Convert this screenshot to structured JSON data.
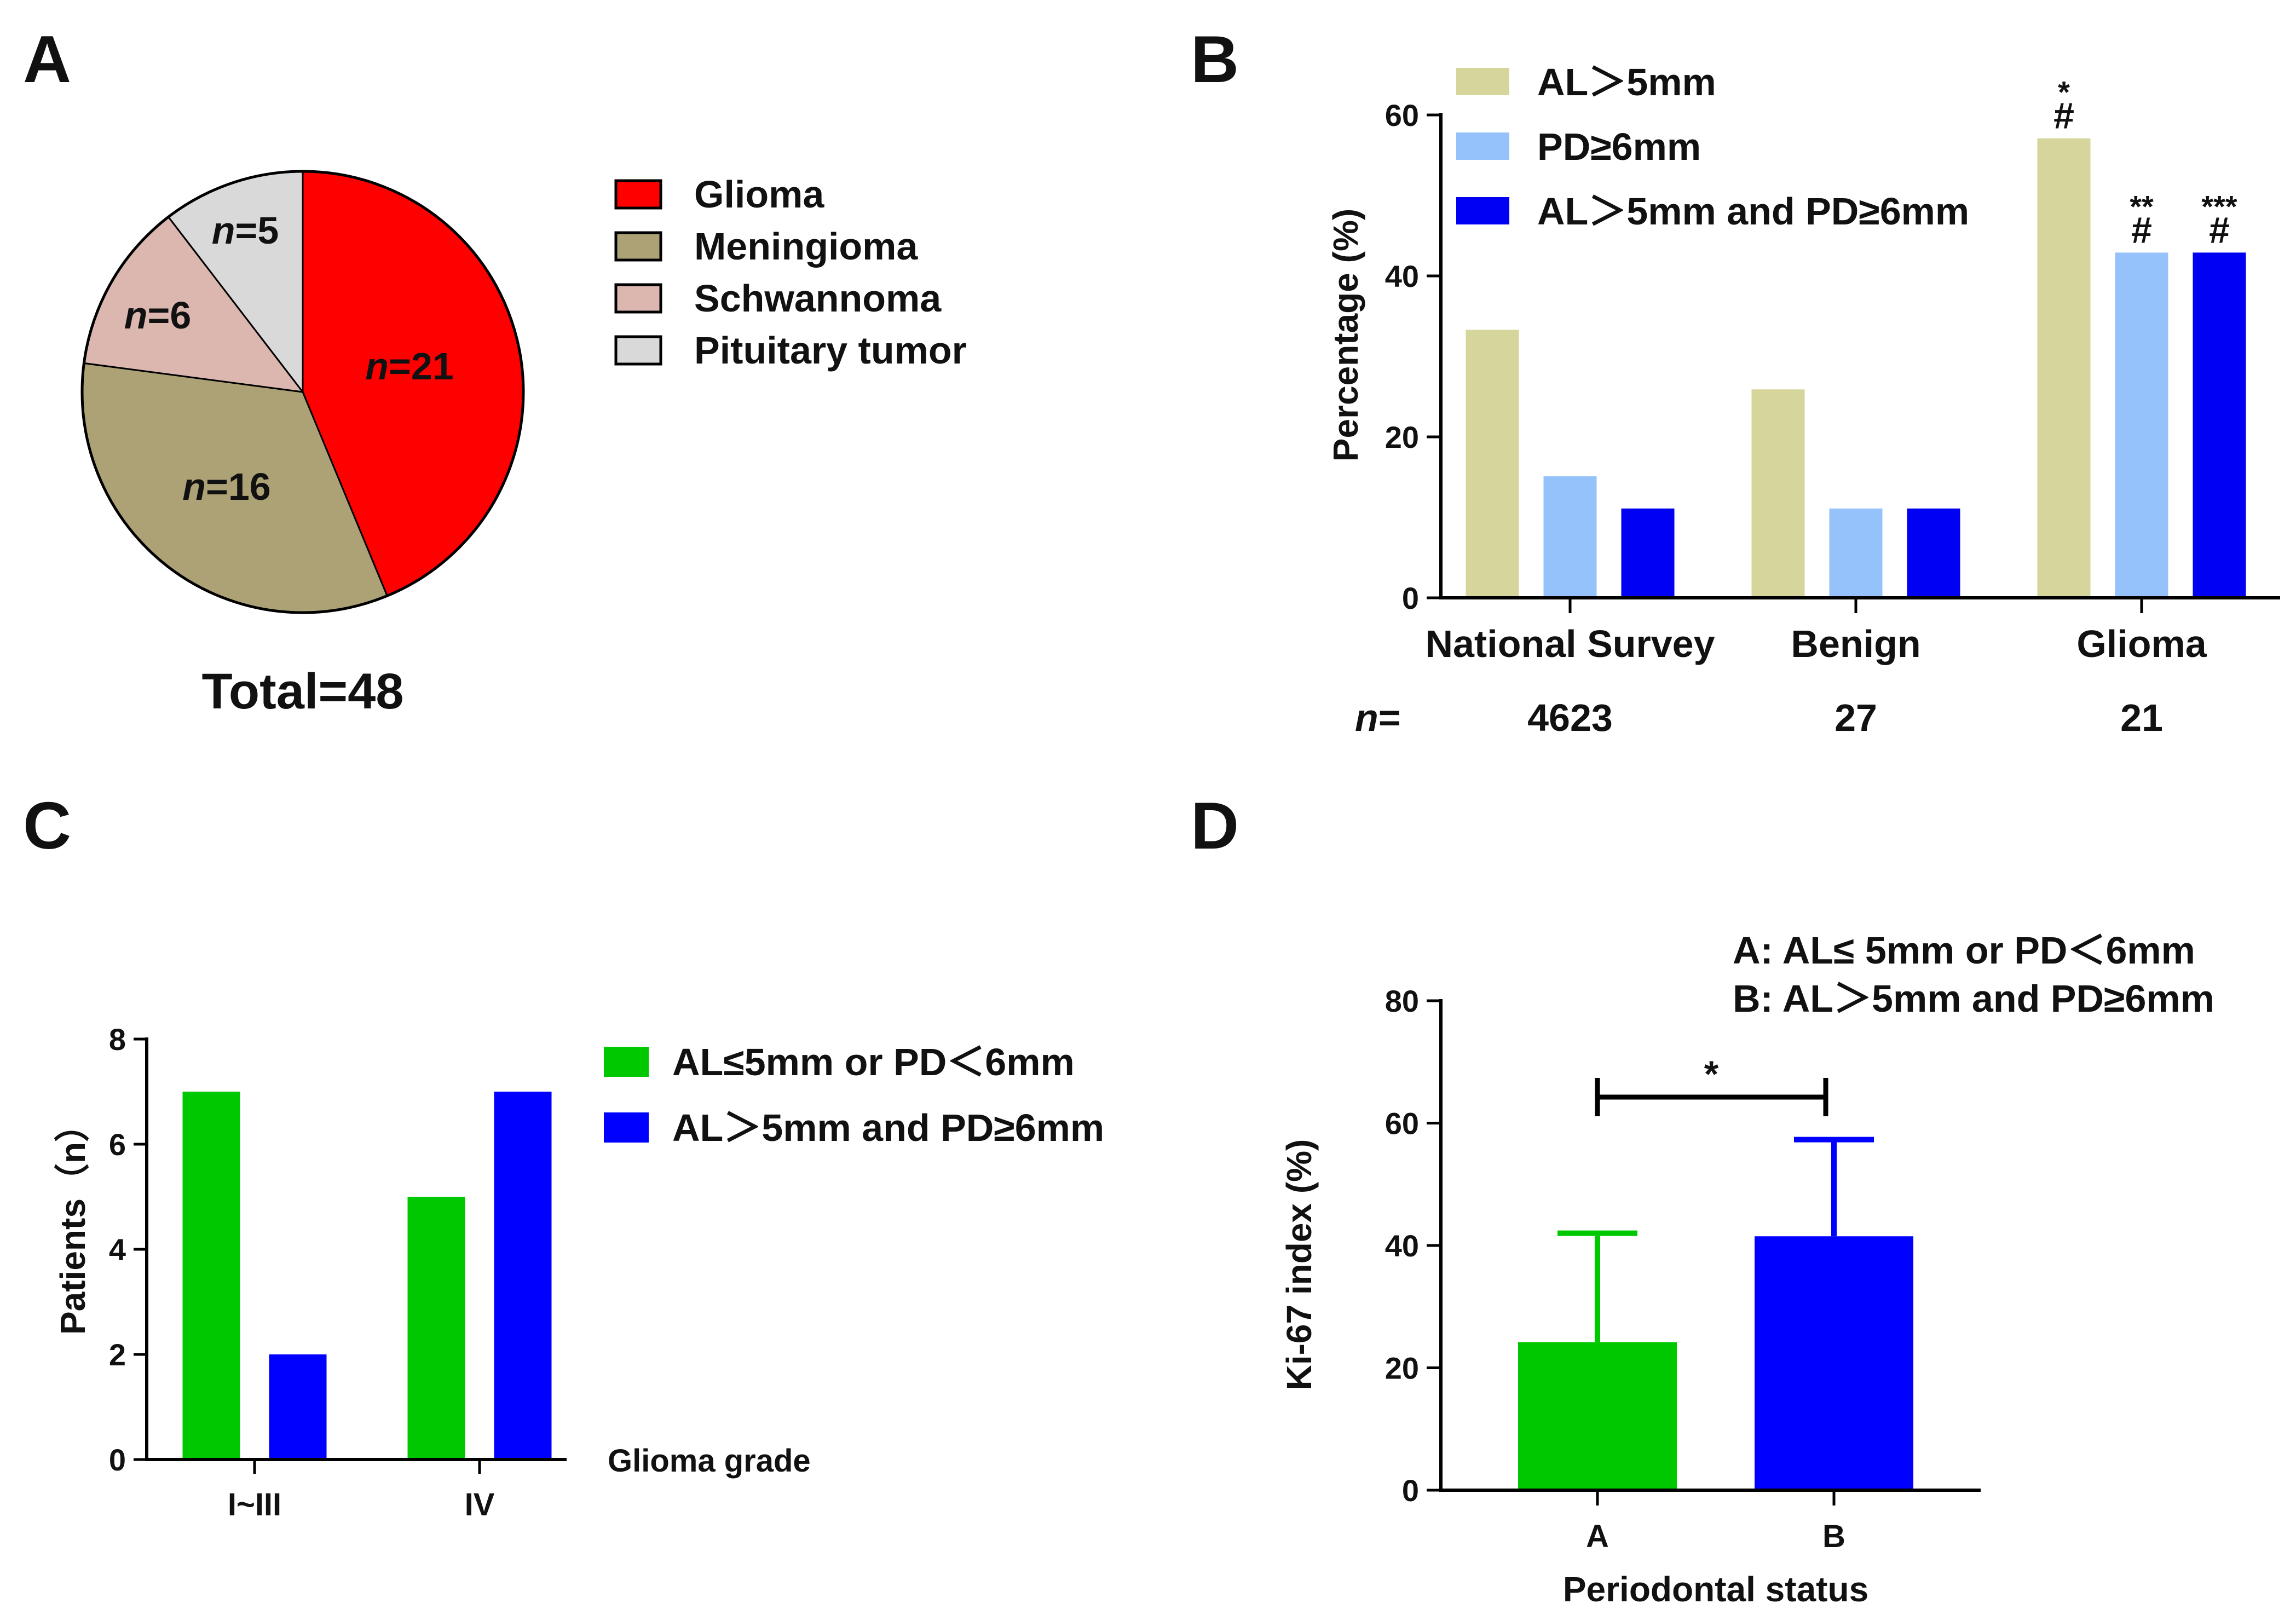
{
  "colors": {
    "glioma": "#ff0000",
    "meningioma": "#ada276",
    "schwannoma": "#dbb7b0",
    "pituitary": "#d9d9d9",
    "khaki": "#d6d59c",
    "light_blue": "#95c2fa",
    "blue": "#0000f3",
    "green": "#00c800",
    "blue_bright": "#0000ff"
  },
  "chart_data": [
    {
      "panel": "A",
      "type": "pie",
      "categories": [
        "Glioma",
        "Meningioma",
        "Schwannoma",
        "Pituitary tumor"
      ],
      "values": [
        21,
        16,
        6,
        5
      ],
      "labels": [
        "21",
        "16",
        "6",
        "5"
      ],
      "label_prefix": "n",
      "label_eq": "=",
      "total_text": "Total=48",
      "legend_position": "right"
    },
    {
      "panel": "B",
      "type": "bar",
      "categories": [
        "National Survey",
        "Benign",
        "Glioma"
      ],
      "series": [
        {
          "name": "AL＞5mm",
          "values": [
            33.3,
            25.9,
            57.1
          ]
        },
        {
          "name": "PD≥6mm",
          "values": [
            15.1,
            11.1,
            42.9
          ]
        },
        {
          "name": "AL＞5mm and PD≥6mm",
          "values": [
            11.1,
            11.1,
            42.9
          ]
        }
      ],
      "ylabel": "Percentage (%)",
      "ylim": [
        0,
        60
      ],
      "yticks": [
        "0",
        "20",
        "40",
        "60"
      ],
      "n_label": "n",
      "n_eq": "=",
      "n_values": [
        "4623",
        "27",
        "21"
      ],
      "annotations": {
        "stars": [
          "*",
          "**",
          "***"
        ],
        "hash": "#"
      },
      "legend_position": "top-left"
    },
    {
      "panel": "C",
      "type": "bar",
      "categories": [
        "I~III",
        "IV"
      ],
      "series": [
        {
          "name": "AL≤5mm or PD＜6mm",
          "values": [
            7,
            5
          ]
        },
        {
          "name": "AL＞5mm and PD≥6mm",
          "values": [
            2,
            7
          ]
        }
      ],
      "ylabel": "Patients（n）",
      "xlabel": "Glioma grade",
      "ylim": [
        0,
        8
      ],
      "yticks": [
        "0",
        "2",
        "4",
        "6",
        "8"
      ],
      "legend_position": "right"
    },
    {
      "panel": "D",
      "type": "bar",
      "categories": [
        "A",
        "B"
      ],
      "values": [
        24.2,
        41.5
      ],
      "errors": [
        17.8,
        15.8
      ],
      "ylabel": "Ki-67 index (%)",
      "xlabel": "Periodontal status",
      "ylim": [
        0,
        80
      ],
      "yticks": [
        "0",
        "20",
        "40",
        "60",
        "80"
      ],
      "significance": "*",
      "key_lines": [
        "A: AL≤ 5mm or PD＜6mm",
        "B: AL＞5mm and PD≥6mm"
      ]
    }
  ]
}
